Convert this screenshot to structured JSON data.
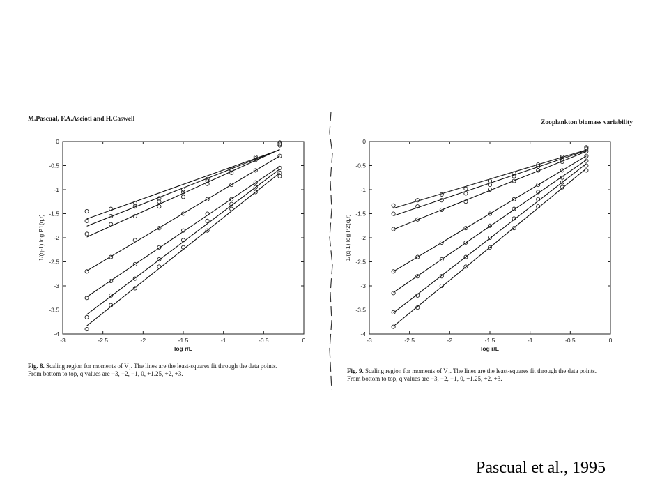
{
  "left_page": {
    "header": "M.Pascual, F.A.Ascioti and H.Caswell",
    "caption_fig": "Fig. 8.",
    "caption_line1": " Scaling region for moments of V₁. The lines are the least-squares fit through the data points.",
    "caption_line2": "From bottom to top, q values are −3, −2, −1, 0, +1.25, +2, +3."
  },
  "right_page": {
    "header": "Zooplankton biomass variability",
    "caption_fig": "Fig. 9.",
    "caption_line1": " Scaling region for moments of V₂. The lines are the least-squares fit through the data points.",
    "caption_line2": "From bottom to top, q values are −3, −2, −1, 0, +1.25, +2, +3."
  },
  "credit": "Pascual et al., 1995",
  "chart_data": [
    {
      "type": "scatter",
      "figure": "Fig. 8",
      "xlabel": "log r/L",
      "ylabel": "1/(q-1) log P1(q,r)",
      "xlim": [
        -3,
        0
      ],
      "ylim": [
        -4,
        0
      ],
      "xticks": [
        "-3",
        "-2.5",
        "-2",
        "-1.5",
        "-1",
        "-0.5",
        "0"
      ],
      "yticks": [
        "0",
        "-0.5",
        "-1",
        "-1.5",
        "-2",
        "-2.5",
        "-3",
        "-3.5",
        "-4"
      ],
      "x": [
        -2.7,
        -2.4,
        -2.1,
        -1.8,
        -1.5,
        -1.2,
        -0.9,
        -0.6,
        -0.3
      ],
      "series": [
        {
          "q": -3,
          "values": [
            -3.9,
            -3.4,
            -3.05,
            -2.6,
            -2.2,
            -1.85,
            -1.4,
            -1.05,
            -0.72
          ]
        },
        {
          "q": -2,
          "values": [
            -3.65,
            -3.2,
            -2.85,
            -2.45,
            -2.05,
            -1.65,
            -1.3,
            -0.95,
            -0.65
          ]
        },
        {
          "q": -1,
          "values": [
            -3.25,
            -2.9,
            -2.55,
            -2.2,
            -1.85,
            -1.5,
            -1.2,
            -0.85,
            -0.55
          ]
        },
        {
          "q": 0,
          "values": [
            -2.7,
            -2.4,
            -2.05,
            -1.8,
            -1.5,
            -1.2,
            -0.9,
            -0.6,
            -0.3
          ]
        },
        {
          "q": 1.25,
          "values": [
            -1.92,
            -1.72,
            -1.55,
            -1.35,
            -1.15,
            -0.88,
            -0.65,
            -0.38,
            -0.08
          ]
        },
        {
          "q": 2,
          "values": [
            -1.65,
            -1.55,
            -1.35,
            -1.25,
            -1.05,
            -0.82,
            -0.6,
            -0.35,
            -0.05
          ]
        },
        {
          "q": 3,
          "values": [
            -1.45,
            -1.4,
            -1.28,
            -1.18,
            -1.0,
            -0.78,
            -0.58,
            -0.32,
            -0.02
          ]
        }
      ]
    },
    {
      "type": "scatter",
      "figure": "Fig. 9",
      "xlabel": "log r/L",
      "ylabel": "1/(q-1) log P2(q,r)",
      "xlim": [
        -3,
        0
      ],
      "ylim": [
        -4,
        0
      ],
      "xticks": [
        "-3",
        "-2.5",
        "-2",
        "-1.5",
        "-1",
        "-0.5",
        "0"
      ],
      "yticks": [
        "0",
        "-0.5",
        "-1",
        "-1.5",
        "-2",
        "-2.5",
        "-3",
        "-3.5",
        "-4"
      ],
      "x": [
        -2.7,
        -2.4,
        -2.1,
        -1.8,
        -1.5,
        -1.2,
        -0.9,
        -0.6,
        -0.3
      ],
      "series": [
        {
          "q": -3,
          "values": [
            -3.85,
            -3.45,
            -3.0,
            -2.6,
            -2.2,
            -1.8,
            -1.35,
            -0.95,
            -0.6
          ]
        },
        {
          "q": -2,
          "values": [
            -3.55,
            -3.2,
            -2.8,
            -2.4,
            -2.0,
            -1.6,
            -1.2,
            -0.85,
            -0.5
          ]
        },
        {
          "q": -1,
          "values": [
            -3.15,
            -2.8,
            -2.45,
            -2.1,
            -1.75,
            -1.4,
            -1.05,
            -0.75,
            -0.4
          ]
        },
        {
          "q": 0,
          "values": [
            -2.7,
            -2.4,
            -2.1,
            -1.8,
            -1.5,
            -1.2,
            -0.9,
            -0.6,
            -0.3
          ]
        },
        {
          "q": 1.25,
          "values": [
            -1.82,
            -1.62,
            -1.42,
            -1.25,
            -1.0,
            -0.82,
            -0.6,
            -0.42,
            -0.2
          ]
        },
        {
          "q": 2,
          "values": [
            -1.5,
            -1.35,
            -1.22,
            -1.08,
            -0.9,
            -0.72,
            -0.52,
            -0.35,
            -0.15
          ]
        },
        {
          "q": 3,
          "values": [
            -1.33,
            -1.22,
            -1.1,
            -0.98,
            -0.82,
            -0.66,
            -0.48,
            -0.32,
            -0.12
          ]
        }
      ]
    }
  ]
}
